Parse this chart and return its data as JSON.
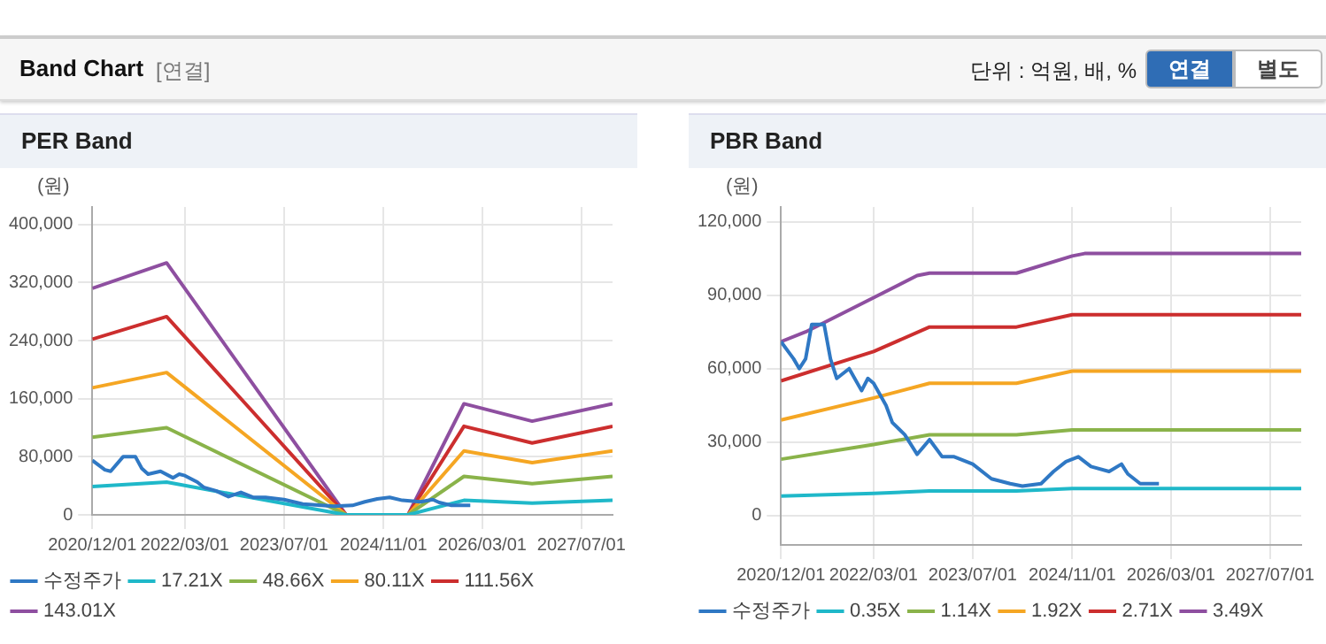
{
  "chart_data": [
    {
      "type": "other",
      "title": "Band Chart",
      "annotations": [
        "[연결]",
        "단위 : 억원, 배, %",
        "연결",
        "별도"
      ]
    },
    {
      "type": "line",
      "title": "PER Band",
      "ylabel": "(원)",
      "xlim": [
        "2020-12-01",
        "2027-12-01"
      ],
      "ylim": [
        0,
        424000
      ],
      "yticks": [
        0,
        {
          "value": 80000,
          "label": "80,000"
        },
        {
          "value": 160000,
          "label": "160,000"
        },
        {
          "value": 240000,
          "label": "240,000"
        },
        {
          "value": 320000,
          "label": "320,000"
        },
        {
          "value": 400000,
          "label": "400,000"
        }
      ],
      "xticks": [
        {
          "value": "2020-12-01",
          "label": "2020/12/01"
        },
        {
          "value": "2022-03-01",
          "label": "2022/03/01"
        },
        {
          "value": "2023-07-01",
          "label": "2023/07/01"
        },
        {
          "value": "2024-11-01",
          "label": "2024/11/01"
        },
        {
          "value": "2026-03-01",
          "label": "2026/03/01"
        },
        {
          "value": "2027-07-01",
          "label": "2027/07/01"
        }
      ],
      "grid": true,
      "legend": "bottom",
      "marker": "none",
      "line_style": "solid",
      "series": [
        {
          "name": "수정주가",
          "color": "#2f78c4",
          "x": [
            "2020-12",
            "2021-02",
            "2021-03",
            "2021-05",
            "2021-07",
            "2021-08",
            "2021-09",
            "2021-11",
            "2022-01",
            "2022-02",
            "2022-03",
            "2022-05",
            "2022-06",
            "2022-08",
            "2022-10",
            "2022-12",
            "2023-02",
            "2023-04",
            "2023-07",
            "2023-10",
            "2024-01",
            "2024-03",
            "2024-06",
            "2024-08",
            "2024-10",
            "2024-12",
            "2025-02",
            "2025-05",
            "2025-07",
            "2025-08",
            "2025-10",
            "2026-01"
          ],
          "values": [
            75000,
            62000,
            60000,
            80000,
            80000,
            64000,
            56000,
            60000,
            51000,
            56000,
            54000,
            45000,
            38000,
            33000,
            25000,
            31000,
            24000,
            24000,
            21000,
            15000,
            13000,
            12000,
            13000,
            18000,
            22000,
            24000,
            20000,
            18000,
            21000,
            17000,
            13000,
            13000
          ]
        },
        {
          "name": "17.21X",
          "color": "#1fb8c9",
          "x": [
            "2020-12",
            "2021-12",
            "2024-05",
            "2025-03",
            "2025-12",
            "2026-11",
            "2027-12"
          ],
          "values": [
            39000,
            45000,
            0,
            0,
            20000,
            16000,
            20000
          ]
        },
        {
          "name": "48.66X",
          "color": "#8ab34a",
          "x": [
            "2020-12",
            "2021-12",
            "2024-05",
            "2025-03",
            "2025-12",
            "2026-11",
            "2027-12"
          ],
          "values": [
            107000,
            120000,
            0,
            0,
            53000,
            43000,
            53000
          ]
        },
        {
          "name": "80.11X",
          "color": "#f5a623",
          "x": [
            "2020-12",
            "2021-12",
            "2024-05",
            "2025-03",
            "2025-12",
            "2026-11",
            "2027-12"
          ],
          "values": [
            175000,
            196000,
            0,
            0,
            88000,
            72000,
            88000
          ]
        },
        {
          "name": "111.56X",
          "color": "#cc2e2e",
          "x": [
            "2020-12",
            "2021-12",
            "2024-05",
            "2025-03",
            "2025-12",
            "2026-11",
            "2027-12"
          ],
          "values": [
            242000,
            273000,
            0,
            0,
            122000,
            99000,
            122000
          ]
        },
        {
          "name": "143.01X",
          "color": "#8e4fa0",
          "x": [
            "2020-12",
            "2021-12",
            "2024-05",
            "2025-03",
            "2025-12",
            "2026-11",
            "2027-12"
          ],
          "values": [
            312000,
            347000,
            0,
            0,
            153000,
            129000,
            153000
          ]
        }
      ]
    },
    {
      "type": "line",
      "title": "PBR Band",
      "ylabel": "(원)",
      "xlim": [
        "2020-12-01",
        "2027-12-01"
      ],
      "ylim": [
        -12000,
        126000
      ],
      "yticks": [
        0,
        {
          "value": 30000,
          "label": "30,000"
        },
        {
          "value": 60000,
          "label": "60,000"
        },
        {
          "value": 90000,
          "label": "90,000"
        },
        {
          "value": 120000,
          "label": "120,000"
        }
      ],
      "xticks": [
        {
          "value": "2020-12-01",
          "label": "2020/12/01"
        },
        {
          "value": "2022-03-01",
          "label": "2022/03/01"
        },
        {
          "value": "2023-07-01",
          "label": "2023/07/01"
        },
        {
          "value": "2024-11-01",
          "label": "2024/11/01"
        },
        {
          "value": "2026-03-01",
          "label": "2026/03/01"
        },
        {
          "value": "2027-07-01",
          "label": "2027/07/01"
        }
      ],
      "grid": true,
      "legend": "bottom",
      "marker": "none",
      "line_style": "solid",
      "series": [
        {
          "name": "수정주가",
          "color": "#2f78c4",
          "x": [
            "2020-12",
            "2021-02",
            "2021-03",
            "2021-04",
            "2021-05",
            "2021-07",
            "2021-08",
            "2021-09",
            "2021-11",
            "2022-01",
            "2022-02",
            "2022-03",
            "2022-05",
            "2022-06",
            "2022-08",
            "2022-10",
            "2022-12",
            "2023-02",
            "2023-04",
            "2023-07",
            "2023-10",
            "2024-01",
            "2024-03",
            "2024-06",
            "2024-08",
            "2024-10",
            "2024-12",
            "2025-02",
            "2025-05",
            "2025-07",
            "2025-08",
            "2025-10",
            "2026-01"
          ],
          "values": [
            71000,
            64000,
            60000,
            64000,
            78000,
            78000,
            64000,
            56000,
            60000,
            51000,
            56000,
            54000,
            45000,
            38000,
            33000,
            25000,
            31000,
            24000,
            24000,
            21000,
            15000,
            13000,
            12000,
            13000,
            18000,
            22000,
            24000,
            20000,
            18000,
            21000,
            17000,
            13000,
            13000
          ]
        },
        {
          "name": "0.35X",
          "color": "#1fb8c9",
          "x": [
            "2020-12",
            "2022-03",
            "2022-12",
            "2024-02",
            "2024-11",
            "2027-12"
          ],
          "values": [
            8000,
            9000,
            10000,
            10000,
            11000,
            11000
          ]
        },
        {
          "name": "1.14X",
          "color": "#8ab34a",
          "x": [
            "2020-12",
            "2022-03",
            "2022-12",
            "2024-02",
            "2024-11",
            "2027-12"
          ],
          "values": [
            23000,
            29000,
            33000,
            33000,
            35000,
            35000
          ]
        },
        {
          "name": "1.92X",
          "color": "#f5a623",
          "x": [
            "2020-12",
            "2022-03",
            "2022-12",
            "2024-02",
            "2024-11",
            "2027-12"
          ],
          "values": [
            39000,
            48000,
            54000,
            54000,
            59000,
            59000
          ]
        },
        {
          "name": "2.71X",
          "color": "#cc2e2e",
          "x": [
            "2020-12",
            "2022-03",
            "2022-12",
            "2024-02",
            "2024-11",
            "2027-12"
          ],
          "values": [
            55000,
            67000,
            77000,
            77000,
            82000,
            82000
          ]
        },
        {
          "name": "3.49X",
          "color": "#8e4fa0",
          "x": [
            "2020-12",
            "2021-04",
            "2022-03",
            "2022-10",
            "2022-12",
            "2024-02",
            "2024-11",
            "2025-01",
            "2027-12"
          ],
          "values": [
            71000,
            75000,
            89000,
            98000,
            99000,
            99000,
            106000,
            107000,
            107000
          ]
        }
      ]
    }
  ]
}
